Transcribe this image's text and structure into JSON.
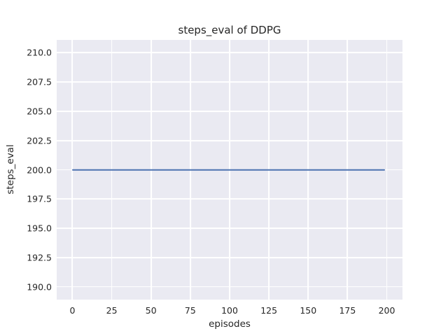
{
  "chart_data": {
    "type": "line",
    "title": "steps_eval of DDPG",
    "xlabel": "episodes",
    "ylabel": "steps_eval",
    "x_ticks": [
      0,
      25,
      50,
      75,
      100,
      125,
      150,
      175,
      200
    ],
    "y_tick_labels": [
      "190.0",
      "192.5",
      "195.0",
      "197.5",
      "200.0",
      "202.5",
      "205.0",
      "207.5",
      "210.0"
    ],
    "xlim": [
      -10,
      210
    ],
    "ylim": [
      188.9,
      211.1
    ],
    "grid": true,
    "legend": false,
    "series": [
      {
        "name": "DDPG steps_eval",
        "color": "#4c72b0",
        "x": [
          0,
          199
        ],
        "y": [
          200,
          200
        ],
        "note": "constant horizontal line at y=200 from episode 0 to episode 199"
      }
    ],
    "colors": {
      "figure_background": "#ffffff",
      "axes_background": "#eaeaf2",
      "grid_color": "#ffffff",
      "text_color": "#262626",
      "line_color": "#4c72b0"
    }
  }
}
